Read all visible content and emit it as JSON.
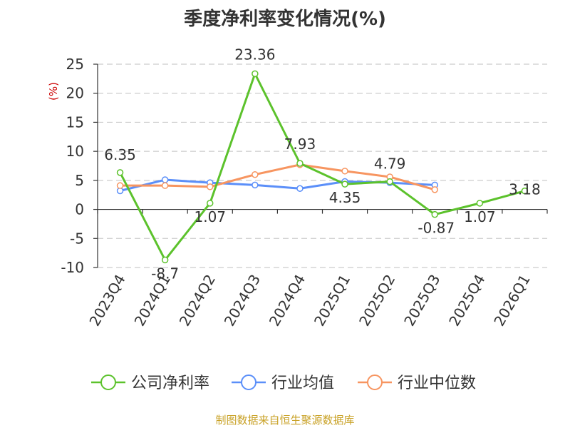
{
  "title": "季度净利率变化情况(%)",
  "source": "制图数据来自恒生聚源数据库",
  "chart_data": {
    "type": "line",
    "title": "季度净利率变化情况(%)",
    "ylabel": "(%)",
    "ylim": [
      -10,
      25
    ],
    "yticks": [
      -10,
      -5,
      0,
      5,
      10,
      15,
      20,
      25
    ],
    "grid": true,
    "legend_position": "bottom",
    "categories": [
      "2023Q4",
      "2024Q1",
      "2024Q2",
      "2024Q3",
      "2024Q4",
      "2025Q1",
      "2025Q2",
      "2025Q3",
      "2025Q4",
      "2026Q1"
    ],
    "series": [
      {
        "name": "公司净利率",
        "color": "#5cc22c",
        "values": [
          6.35,
          -8.7,
          1.07,
          23.36,
          7.93,
          4.35,
          4.79,
          -0.87,
          1.07,
          3.18
        ],
        "labels": [
          "6.35",
          "-8.7",
          "1.07",
          "23.36",
          "7.93",
          "4.35",
          "4.79",
          "-0.87",
          "1.07",
          "3.18"
        ]
      },
      {
        "name": "行业均值",
        "color": "#5b8ff9",
        "values": [
          3.2,
          5.1,
          4.6,
          4.2,
          3.6,
          4.8,
          4.6,
          4.2,
          null,
          null
        ]
      },
      {
        "name": "行业中位数",
        "color": "#f79560",
        "values": [
          4.1,
          4.1,
          3.9,
          6.0,
          7.7,
          6.6,
          5.6,
          3.4,
          null,
          null
        ]
      }
    ]
  }
}
